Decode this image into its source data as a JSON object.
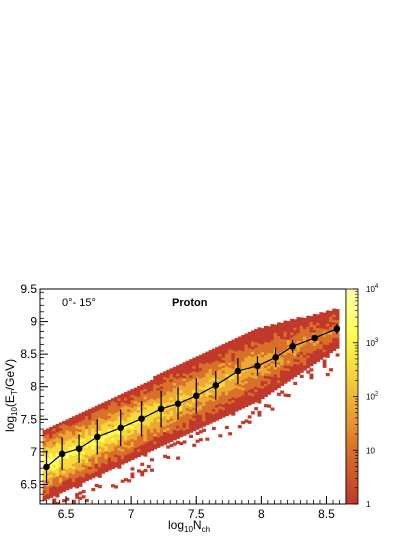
{
  "chart_data": {
    "type": "heatmap",
    "title": "",
    "annotations": {
      "angle_range": "0°- 15°",
      "particle": "Proton"
    },
    "xlabel": {
      "base": "log",
      "sub1": "10",
      "mid": "N",
      "sub2": "ch"
    },
    "ylabel": {
      "base": "log",
      "sub1": "10",
      "mid": "(E",
      "sub2": "T",
      "end": "/GeV)"
    },
    "xlim": [
      6.3,
      8.65
    ],
    "ylim": [
      6.2,
      9.5
    ],
    "x_ticks": [
      "6.5",
      "7",
      "7.5",
      "8",
      "8.5"
    ],
    "y_ticks": [
      "6.5",
      "7",
      "7.5",
      "8",
      "8.5",
      "9",
      "9.5"
    ],
    "grid": false,
    "colorbar": {
      "scale": "log",
      "range": [
        1,
        10000
      ],
      "ticks": [
        {
          "base": "1",
          "exp": ""
        },
        {
          "base": "10",
          "exp": ""
        },
        {
          "base": "10",
          "exp": "2"
        },
        {
          "base": "10",
          "exp": "3"
        },
        {
          "base": "10",
          "exp": "4"
        }
      ],
      "colors": [
        "#c0392b",
        "#d9702a",
        "#eca833",
        "#f7d93a",
        "#ffff55",
        "#ffffb0"
      ]
    },
    "band": {
      "x_min": 6.32,
      "x_max": 8.58,
      "ridge_start": 6.55,
      "ridge_slope": 0.93,
      "half_width_y": 0.55
    },
    "profile": {
      "series_name": "",
      "color": "#000000",
      "points": [
        {
          "x": 6.35,
          "y": 6.77,
          "err": 0.25
        },
        {
          "x": 6.47,
          "y": 6.97,
          "err": 0.25
        },
        {
          "x": 6.6,
          "y": 7.05,
          "err": 0.22
        },
        {
          "x": 6.74,
          "y": 7.23,
          "err": 0.27
        },
        {
          "x": 6.92,
          "y": 7.37,
          "err": 0.28
        },
        {
          "x": 7.08,
          "y": 7.51,
          "err": 0.27
        },
        {
          "x": 7.23,
          "y": 7.66,
          "err": 0.28
        },
        {
          "x": 7.36,
          "y": 7.74,
          "err": 0.25
        },
        {
          "x": 7.5,
          "y": 7.86,
          "err": 0.27
        },
        {
          "x": 7.65,
          "y": 8.02,
          "err": 0.22
        },
        {
          "x": 7.82,
          "y": 8.24,
          "err": 0.2
        },
        {
          "x": 7.97,
          "y": 8.32,
          "err": 0.15
        },
        {
          "x": 8.11,
          "y": 8.45,
          "err": 0.15
        },
        {
          "x": 8.24,
          "y": 8.62,
          "err": 0.1
        },
        {
          "x": 8.41,
          "y": 8.75,
          "err": 0.05
        },
        {
          "x": 8.58,
          "y": 8.89,
          "err": 0.08
        }
      ]
    }
  }
}
